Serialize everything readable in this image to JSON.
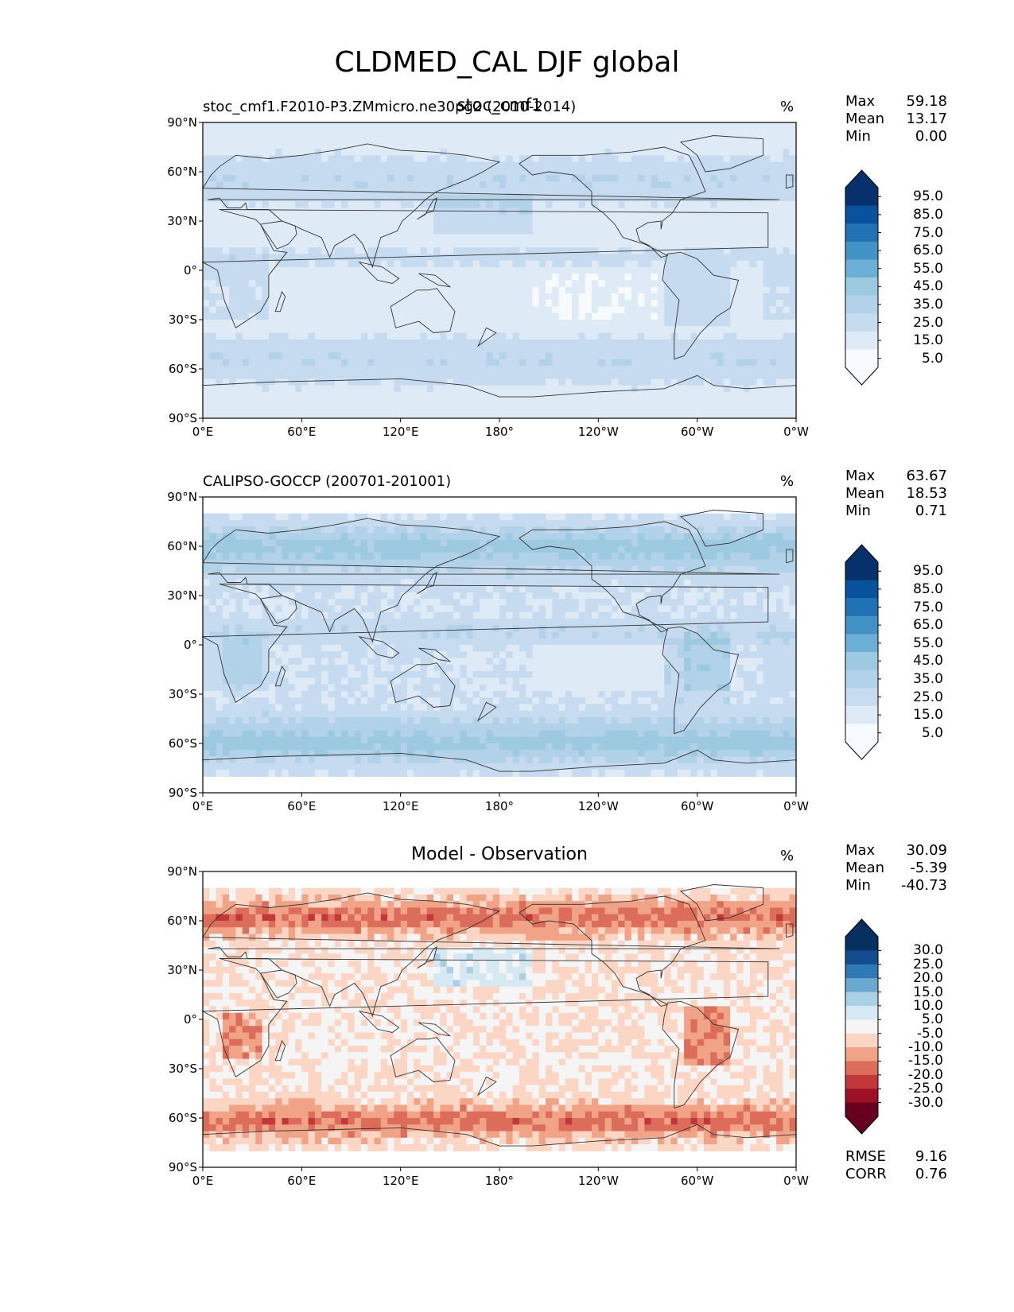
{
  "title": "CLDMED_CAL DJF global",
  "palettes": {
    "blues": [
      "#f7fbff",
      "#deebf7",
      "#c6dbef",
      "#b1d2e8",
      "#9ecae1",
      "#6baed6",
      "#4292c6",
      "#2171b5",
      "#08519c",
      "#08306b"
    ],
    "diverging": [
      "#67001f",
      "#9b1026",
      "#c2373a",
      "#dc6d5b",
      "#f1a388",
      "#fbd6c4",
      "#f5f5f5",
      "#d6e8f2",
      "#a9d0e5",
      "#6aa8d0",
      "#3079b7",
      "#124e8f",
      "#053061"
    ]
  },
  "axis_ticks": {
    "lat": [
      "90°N",
      "60°N",
      "30°N",
      "0°",
      "30°S",
      "60°S",
      "90°S"
    ],
    "lon": [
      "0°E",
      "60°E",
      "120°E",
      "180°",
      "120°W",
      "60°W",
      "0°W"
    ]
  },
  "panels": [
    {
      "left_title": "stoc_cmf1.F2010-P3.ZMmicro.ne30pg2 (2010-2014)",
      "center_title": "stoc_cmf1",
      "units": "%",
      "stats": [
        {
          "label": "Max",
          "value": "59.18"
        },
        {
          "label": "Mean",
          "value": "13.17"
        },
        {
          "label": "Min",
          "value": "0.00"
        }
      ],
      "colorbar": {
        "palette": "blues",
        "labels": [
          "95.0",
          "85.0",
          "75.0",
          "65.0",
          "55.0",
          "45.0",
          "35.0",
          "25.0",
          "15.0",
          "5.0"
        ]
      }
    },
    {
      "left_title": "CALIPSO-GOCCP (200701-201001)",
      "center_title": "",
      "units": "%",
      "stats": [
        {
          "label": "Max",
          "value": "63.67"
        },
        {
          "label": "Mean",
          "value": "18.53"
        },
        {
          "label": "Min",
          "value": "0.71"
        }
      ],
      "colorbar": {
        "palette": "blues",
        "labels": [
          "95.0",
          "85.0",
          "75.0",
          "65.0",
          "55.0",
          "45.0",
          "35.0",
          "25.0",
          "15.0",
          "5.0"
        ]
      }
    },
    {
      "left_title": "",
      "center_title": "Model - Observation",
      "units": "%",
      "stats": [
        {
          "label": "Max",
          "value": "30.09"
        },
        {
          "label": "Mean",
          "value": "-5.39"
        },
        {
          "label": "Min",
          "value": "-40.73"
        }
      ],
      "colorbar": {
        "palette": "diverging",
        "labels": [
          "30.0",
          "25.0",
          "20.0",
          "15.0",
          "10.0",
          "5.0",
          "-5.0",
          "-10.0",
          "-15.0",
          "-20.0",
          "-25.0",
          "-30.0"
        ]
      },
      "bottom_stats": [
        {
          "label": "RMSE",
          "value": "9.16"
        },
        {
          "label": "CORR",
          "value": "0.76"
        }
      ]
    }
  ]
}
